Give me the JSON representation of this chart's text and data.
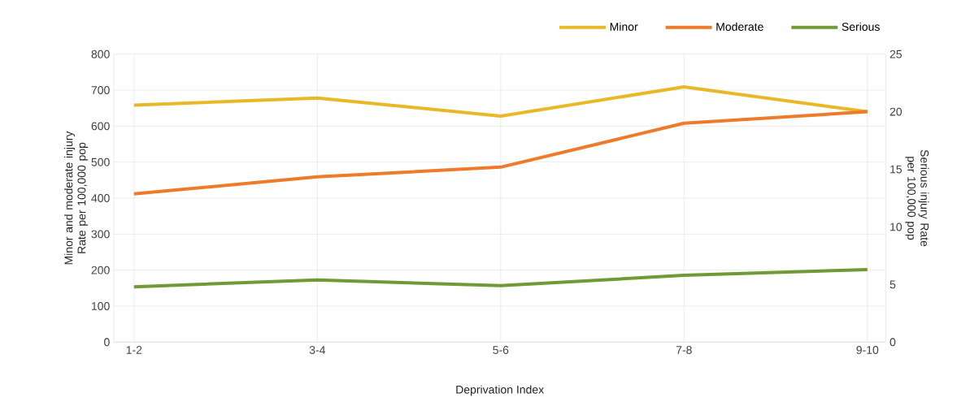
{
  "chart_data": {
    "type": "line",
    "xlabel": "Deprivation Index",
    "ylabel": "Minor and moderate injury Rate per 100,000 pop",
    "y2label": "Serious injury Rate per 100,000 pop",
    "categories": [
      "1-2",
      "3-4",
      "5-6",
      "7-8",
      "9-10"
    ],
    "series": [
      {
        "name": "Minor",
        "color": "#e8b826",
        "values": [
          658,
          678,
          628,
          709,
          640
        ]
      },
      {
        "name": "Moderate",
        "color": "#ee7a2a",
        "values": [
          412,
          459,
          486,
          608,
          640
        ]
      },
      {
        "name": "Serious",
        "color": "#6f9a34",
        "axis": "y2",
        "values": [
          4.8,
          5.4,
          4.9,
          5.8,
          6.3
        ]
      }
    ],
    "ylim": [
      0,
      800
    ],
    "yticks": [
      0,
      100,
      200,
      300,
      400,
      500,
      600,
      700,
      800
    ],
    "y2lim": [
      0,
      25
    ],
    "y2ticks": [
      0,
      5,
      10,
      15,
      20,
      25
    ],
    "grid": true,
    "legend": "top right",
    "marker": "none",
    "line_style": "solid"
  }
}
